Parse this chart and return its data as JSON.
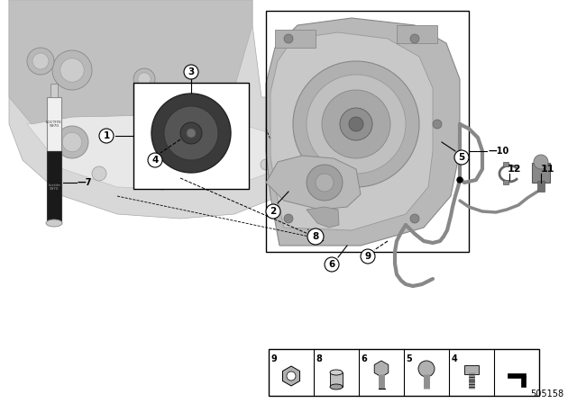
{
  "background_color": "#ffffff",
  "diagram_number": "505158",
  "light_gray": "#d0d0d0",
  "mid_gray": "#a0a0a0",
  "dark_gray": "#505050",
  "very_light_gray": "#e8e8e8",
  "engine_block_color": "#c8c8c8",
  "pump_color": "#b0b0b0",
  "callout_circle_bg": "#ffffff",
  "callout_circle_border": "#000000"
}
